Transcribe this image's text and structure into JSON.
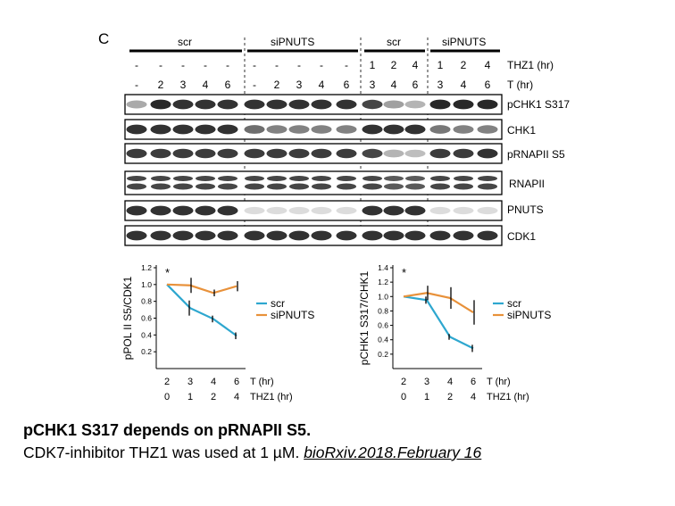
{
  "figure": {
    "panel_letter": "C",
    "groups": [
      "scr",
      "siPNUTS",
      "scr",
      "siPNUTS"
    ],
    "thz1_row": {
      "label": "THZ1 (hr)",
      "values": [
        "-",
        "-",
        "-",
        "-",
        "-",
        "-",
        "-",
        "-",
        "-",
        "-",
        "1",
        "2",
        "4",
        "1",
        "2",
        "4"
      ]
    },
    "t_row": {
      "label": "T (hr)",
      "values": [
        "-",
        "2",
        "3",
        "4",
        "6",
        "-",
        "2",
        "3",
        "4",
        "6",
        "3",
        "4",
        "6",
        "3",
        "4",
        "6"
      ]
    },
    "blots": [
      {
        "label": "pCHK1 S317",
        "intensities": [
          0.3,
          0.95,
          0.9,
          0.9,
          0.9,
          0.9,
          0.9,
          0.9,
          0.9,
          0.9,
          0.8,
          0.35,
          0.25,
          0.95,
          0.95,
          0.95
        ]
      },
      {
        "label": "CHK1",
        "intensities": [
          0.9,
          0.9,
          0.9,
          0.9,
          0.9,
          0.6,
          0.5,
          0.5,
          0.5,
          0.5,
          0.9,
          0.9,
          0.9,
          0.55,
          0.5,
          0.5
        ]
      },
      {
        "label": "pRNAPII S5",
        "intensities": [
          0.85,
          0.85,
          0.85,
          0.85,
          0.85,
          0.85,
          0.85,
          0.85,
          0.85,
          0.85,
          0.8,
          0.25,
          0.2,
          0.85,
          0.85,
          0.9
        ]
      },
      {
        "label": "RNAPII",
        "intensities": [
          0.8,
          0.8,
          0.8,
          0.8,
          0.8,
          0.8,
          0.8,
          0.8,
          0.8,
          0.8,
          0.8,
          0.7,
          0.7,
          0.8,
          0.8,
          0.8
        ]
      },
      {
        "label": "PNUTS",
        "intensities": [
          0.9,
          0.9,
          0.9,
          0.9,
          0.9,
          0.05,
          0.05,
          0.05,
          0.05,
          0.05,
          0.9,
          0.9,
          0.9,
          0.05,
          0.05,
          0.05
        ]
      },
      {
        "label": "CDK1",
        "intensities": [
          0.9,
          0.9,
          0.9,
          0.9,
          0.9,
          0.9,
          0.9,
          0.9,
          0.9,
          0.9,
          0.9,
          0.9,
          0.9,
          0.9,
          0.9,
          0.9
        ]
      }
    ]
  },
  "chart_data": [
    {
      "type": "line",
      "ylabel": "pPOL II S5/CDK1",
      "ylim": [
        0,
        1.2
      ],
      "yticks": [
        "0.2",
        "0.4",
        "0.6",
        "0.8",
        "1.0",
        "1.2"
      ],
      "x_labels": {
        "t": [
          "2",
          "3",
          "4",
          "6"
        ],
        "thz1": [
          "0",
          "1",
          "2",
          "4"
        ]
      },
      "x_row_labels": [
        "T (hr)",
        "THZ1 (hr)"
      ],
      "annotation": "*",
      "series": [
        {
          "name": "scr",
          "color": "#2ea7cf",
          "values": [
            1.0,
            0.72,
            0.59,
            0.39
          ],
          "errors": [
            0,
            0.09,
            0.04,
            0.04
          ]
        },
        {
          "name": "siPNUTS",
          "color": "#e8913a",
          "values": [
            1.0,
            0.99,
            0.9,
            0.98
          ],
          "errors": [
            0,
            0.09,
            0.04,
            0.06
          ]
        }
      ]
    },
    {
      "type": "line",
      "ylabel": "pCHK1 S317/CHK1",
      "ylim": [
        0,
        1.4
      ],
      "yticks": [
        "0.2",
        "0.4",
        "0.6",
        "0.8",
        "1.0",
        "1.2",
        "1.4"
      ],
      "x_labels": {
        "t": [
          "2",
          "3",
          "4",
          "6"
        ],
        "thz1": [
          "0",
          "1",
          "2",
          "4"
        ]
      },
      "x_row_labels": [
        "T (hr)",
        "THZ1 (hr)"
      ],
      "annotation": "*",
      "series": [
        {
          "name": "scr",
          "color": "#2ea7cf",
          "values": [
            1.0,
            0.95,
            0.44,
            0.28
          ],
          "errors": [
            0,
            0.05,
            0.04,
            0.05
          ]
        },
        {
          "name": "siPNUTS",
          "color": "#e8913a",
          "values": [
            1.0,
            1.05,
            0.98,
            0.78
          ],
          "errors": [
            0,
            0.1,
            0.15,
            0.17
          ]
        }
      ]
    }
  ],
  "caption": {
    "title": "pCHK1 S317 depends on pRNAPII S5.",
    "body": "CDK7-inhibitor THZ1 was used at 1 µM. ",
    "source": "bioRxiv.2018.February 16"
  }
}
